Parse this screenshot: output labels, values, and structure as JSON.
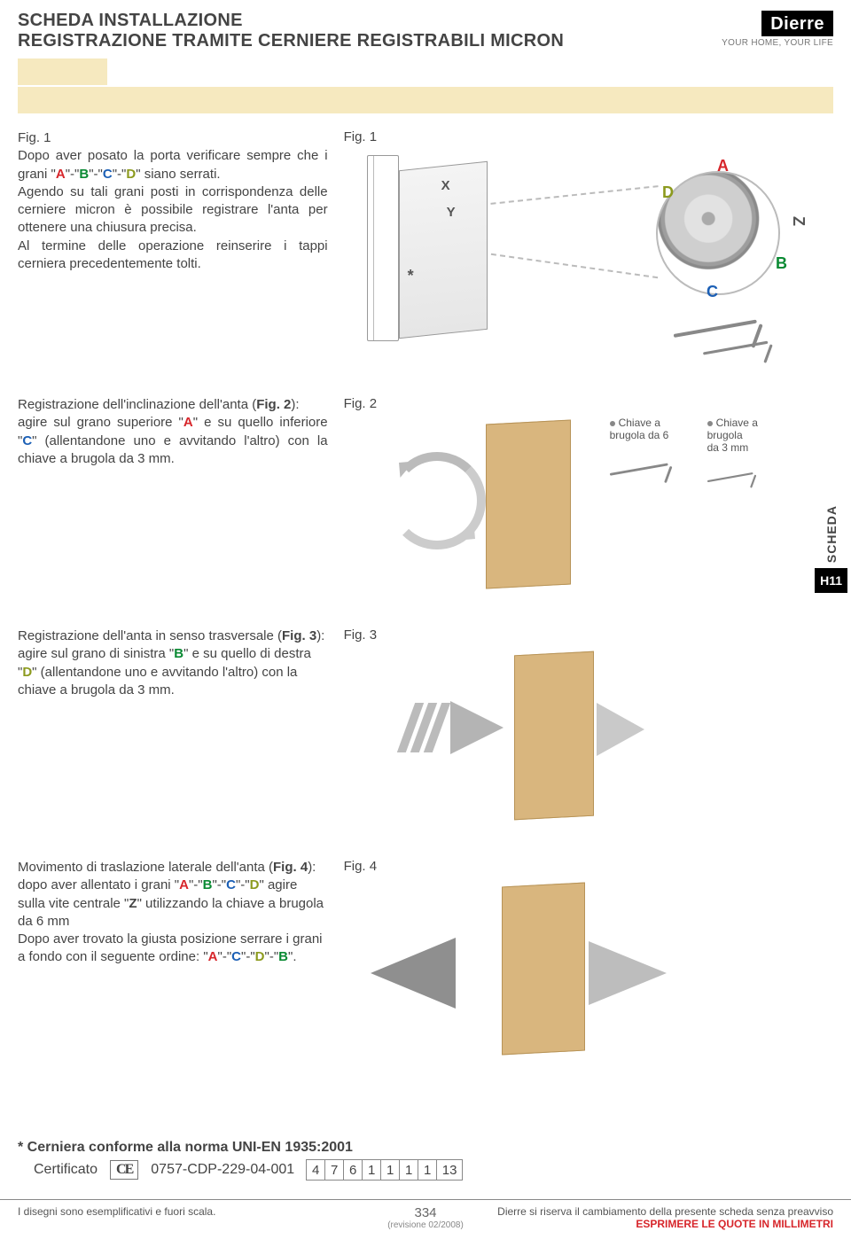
{
  "header": {
    "title_line1": "SCHEDA INSTALLAZIONE",
    "title_line2": "REGISTRAZIONE TRAMITE CERNIERE REGISTRABILI MICRON",
    "logo_name": "Dierre",
    "logo_tag": "YOUR HOME, YOUR LIFE"
  },
  "colors": {
    "A": "#d7262b",
    "B": "#0a8a33",
    "C": "#1b5fb5",
    "D": "#8c9a1e",
    "panel_fill": "#d9b67e",
    "panel_border": "#b79357",
    "arrow_gray": "#b4b4b4",
    "cream": "#f6e9bf"
  },
  "section1": {
    "fig_label_left": "Fig. 1",
    "fig_label_right": "Fig. 1",
    "p1_a": "Dopo aver posato la porta verificare sempre che i grani \"",
    "p1_b": "\"-\"",
    "p1_c": "\"-\"",
    "p1_d": "\"-\"",
    "p1_e": "\" siano serrati.",
    "p2": "Agendo su tali grani posti in corrispondenza delle cerniere micron è possibile registrare l'anta per ottenere una chiusura precisa.",
    "p3": "Al termine delle operazione reinserire i tappi cerniera precedentemente tolti.",
    "lbl_A": "A",
    "lbl_B": "B",
    "lbl_C": "C",
    "lbl_D": "D",
    "lbl_Z": "Z",
    "lbl_X": "X",
    "lbl_Y": "Y",
    "lbl_star": "*"
  },
  "section2": {
    "fig_label": "Fig. 2",
    "t1": "Registrazione dell'inclinazione dell'anta (",
    "t_fig": "Fig. 2",
    "t2": "):",
    "t3": "agire sul grano superiore \"",
    "t4": "\" e su quello inferiore \"",
    "t5": "\" (allentandone uno e avvitando l'altro) con la chiave a brugola da 3 mm.",
    "key1_l1": "Chiave a",
    "key1_l2": "brugola da 6",
    "key2_l1": "Chiave a brugola",
    "key2_l2": "da 3 mm"
  },
  "section3": {
    "fig_label": "Fig. 3",
    "t1": "Registrazione dell'anta in senso trasversale (",
    "t_fig": "Fig. 3",
    "t2": "):",
    "t3": "agire sul grano di sinistra \"",
    "t4": "\" e su quello di destra \"",
    "t5": "\" (allentandone uno e avvitando l'altro) con la chiave a brugola da 3 mm."
  },
  "section4": {
    "fig_label": "Fig. 4",
    "t1": "Movimento di traslazione laterale dell'anta (",
    "t_fig": "Fig. 4",
    "t2": "):",
    "t3": "dopo aver allentato i grani \"",
    "t4": "\"-\"",
    "t5": "\"-\"",
    "t6": "\"-\"",
    "t7": "\" agire sulla vite centrale \"",
    "t8": "\" utilizzando la chiave a brugola da 6 mm",
    "t9": "Dopo aver trovato la giusta posizione serrare i grani a fondo con il seguente ordine: \"",
    "t10": "\"-\"",
    "t11": "\"-\"",
    "t12": "\"-\"",
    "t13": "\".",
    "lbl_Z": "Z"
  },
  "side_tab": {
    "label": "SCHEDA",
    "code": "H11"
  },
  "cert": {
    "line1": "* Cerniera conforme alla norma UNI-EN 1935:2001",
    "label": "Certificato",
    "ce": "CE",
    "cert_no": "0757-CDP-229-04-001",
    "chars": [
      "4",
      "7",
      "6",
      "1",
      "1",
      "1",
      "1",
      "13"
    ]
  },
  "footer": {
    "left": "I disegni sono esemplificativi e fuori scala.",
    "right1": "Dierre si riserva il cambiamento della presente scheda senza preavviso",
    "right2": "ESPRIMERE LE QUOTE IN MILLIMETRI",
    "page": "334",
    "rev": "(revisione 02/2008)"
  }
}
